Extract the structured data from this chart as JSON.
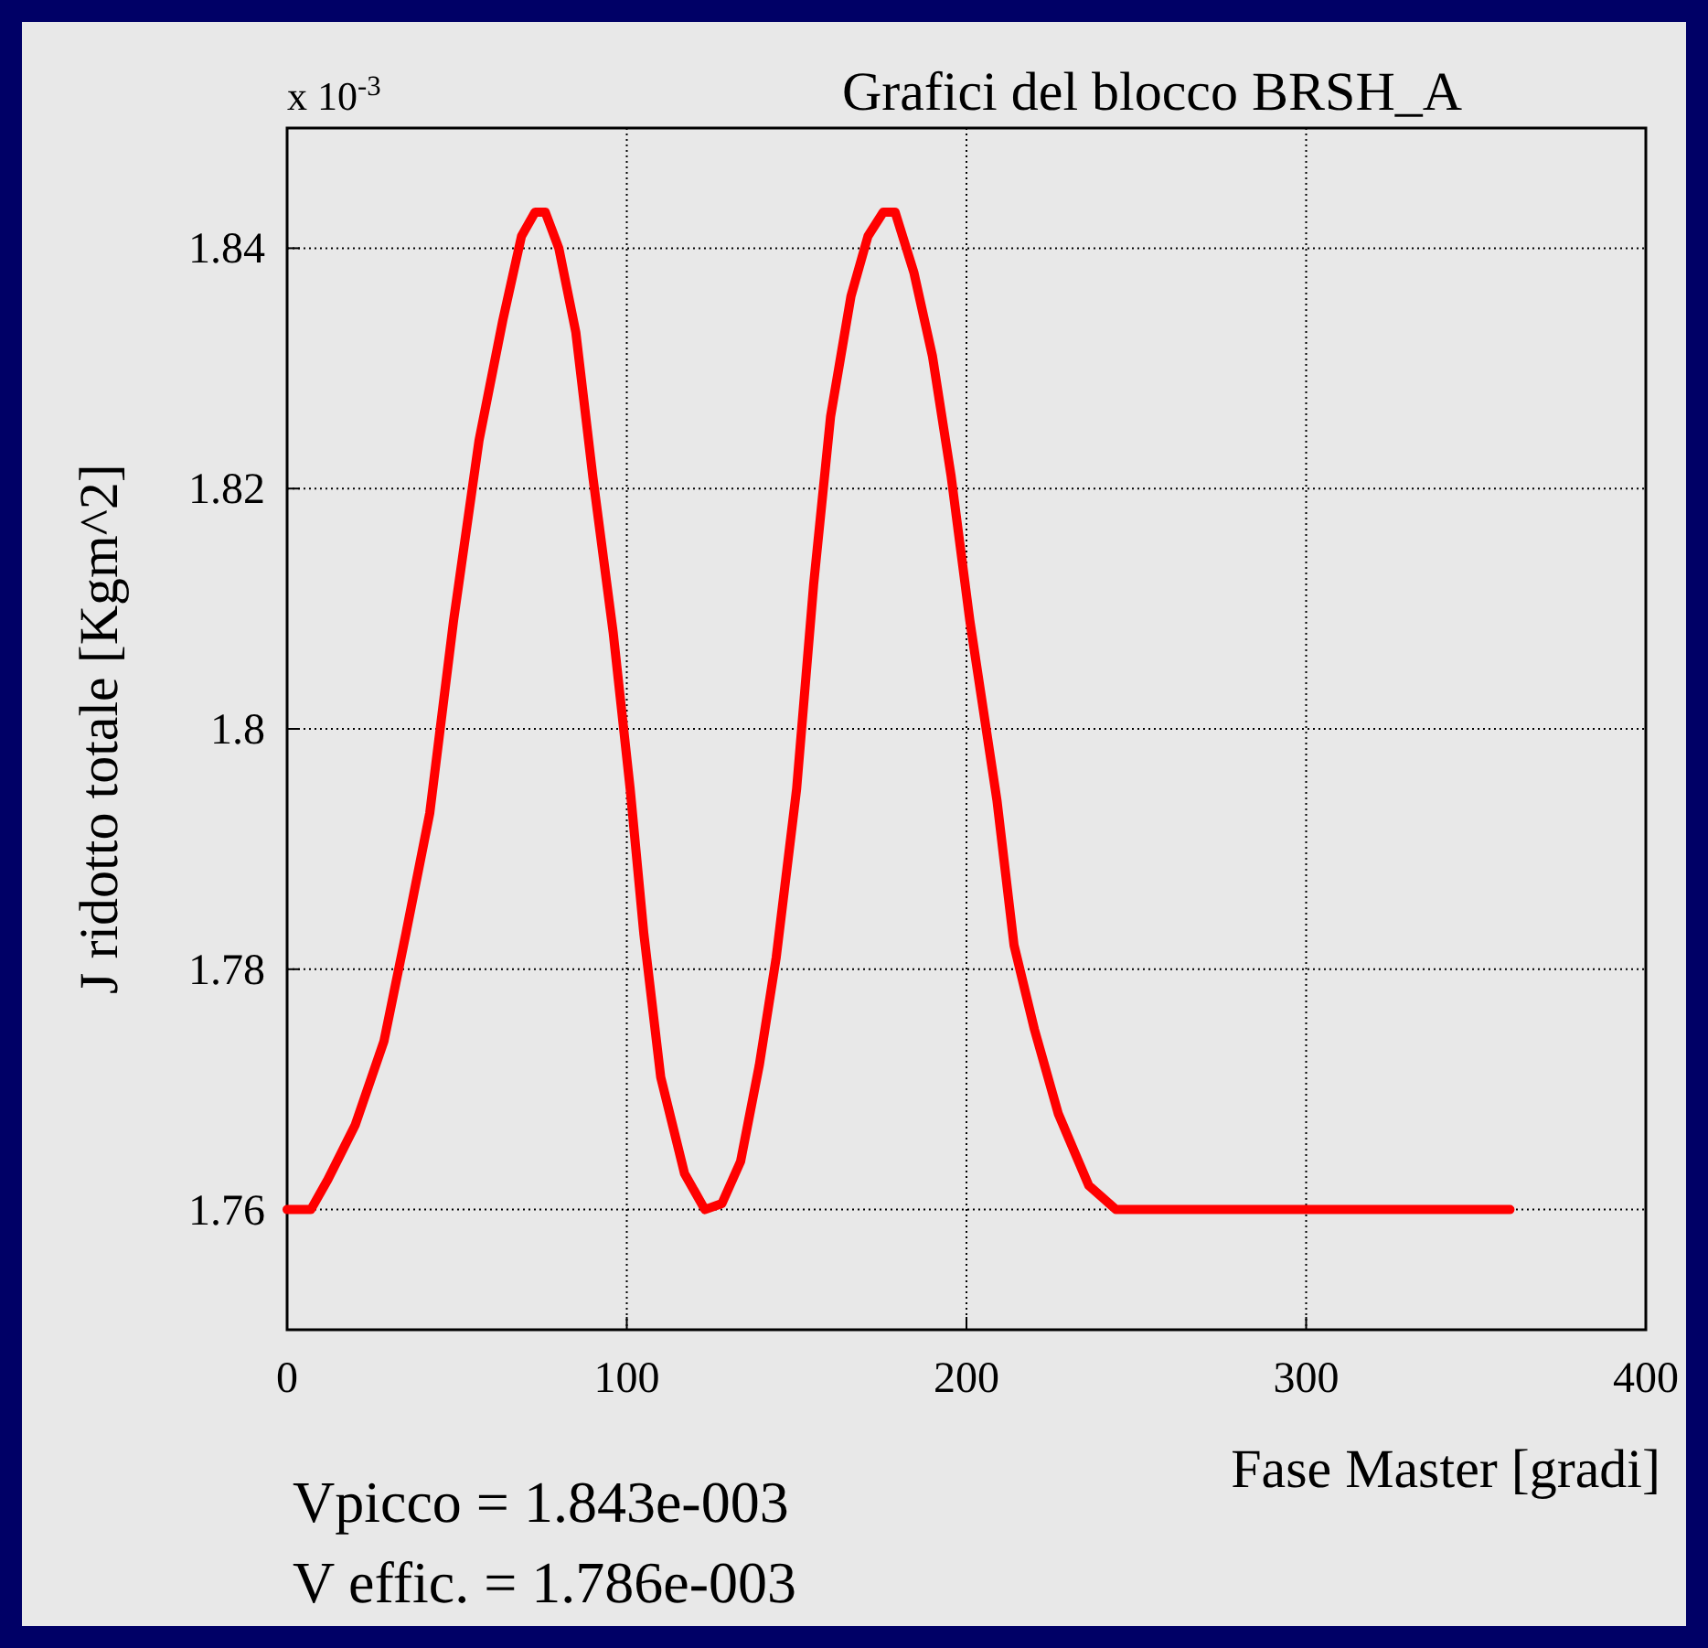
{
  "chart_data": {
    "type": "line",
    "title": "Grafici del blocco BRSH_A",
    "xlabel": "Fase Master [gradi]",
    "ylabel": "J ridotto totale [Kgm^2]",
    "annotations": [
      "x 10$^{-3}$",
      "Vpicco = 1.843e-003",
      "V effic. = 1.786e-003"
    ],
    "x": [
      0,
      7,
      12,
      20,
      28.5,
      35,
      42,
      49,
      56.5,
      63.5,
      69,
      73,
      76,
      80,
      85,
      90,
      96,
      101,
      105,
      110,
      117,
      123,
      128,
      133.5,
      139,
      144,
      150,
      155,
      160,
      166,
      171,
      175.5,
      179,
      184.5,
      190,
      195.5,
      201,
      209,
      214,
      220,
      227,
      236,
      244,
      360
    ],
    "series": [
      {
        "color": "#ff0000",
        "values": [
          1.76,
          1.76,
          1.7625,
          1.767,
          1.774,
          1.783,
          1.793,
          1.809,
          1.824,
          1.834,
          1.841,
          1.843,
          1.843,
          1.84,
          1.833,
          1.821,
          1.808,
          1.795,
          1.783,
          1.771,
          1.763,
          1.76,
          1.7605,
          1.764,
          1.772,
          1.781,
          1.795,
          1.812,
          1.826,
          1.836,
          1.841,
          1.843,
          1.843,
          1.838,
          1.831,
          1.821,
          1.809,
          1.794,
          1.782,
          1.775,
          1.768,
          1.762,
          1.76,
          1.76
        ]
      }
    ],
    "xlim": [
      0,
      400
    ],
    "xticks": [
      0,
      100,
      200,
      300,
      400
    ],
    "ylim": [
      1.75,
      1.85
    ],
    "yticks": [
      1.76,
      1.78,
      1.8,
      1.82,
      1.84
    ],
    "grid": true,
    "marker": "none",
    "line_style": "solid"
  }
}
